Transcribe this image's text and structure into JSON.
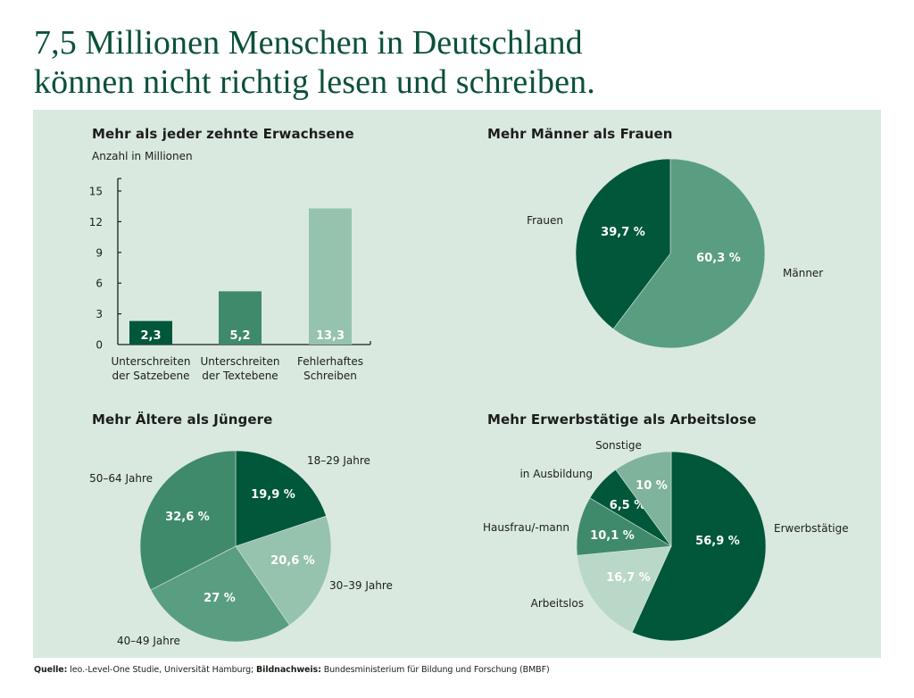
{
  "headline": {
    "line1": "7,5 Millionen Menschen in Deutschland",
    "line2": "können nicht richtig lesen und schreiben."
  },
  "colors": {
    "panel_bg": "#d9e9e0",
    "headline": "#0b5139",
    "dark_green": "#00573a",
    "mid_green": "#3f8a6a",
    "medium_green": "#5a9e82",
    "light_green": "#96c3ad",
    "pale_green": "#b9d8c7"
  },
  "chart_data": [
    {
      "type": "bar",
      "title": "Mehr als jeder zehnte Erwachsene",
      "ylabel": "Anzahl in Millionen",
      "xlabel": "",
      "ylim": [
        0,
        15
      ],
      "yticks": [
        "0",
        "3",
        "6",
        "9",
        "12",
        "15"
      ],
      "categories": [
        [
          "Unterschreiten",
          "der Satzebene"
        ],
        [
          "Unterschreiten",
          "der Textebene"
        ],
        [
          "Fehlerhaftes",
          "Schreiben"
        ]
      ],
      "values": [
        2.3,
        5.2,
        13.3
      ],
      "value_labels": [
        "2,3",
        "5,2",
        "13,3"
      ],
      "bar_colors": [
        "#00573a",
        "#3f8a6a",
        "#96c3ad"
      ],
      "grid": false
    },
    {
      "type": "pie",
      "title": "Mehr Männer als Frauen",
      "slices": [
        {
          "label": "Männer",
          "value": 60.3,
          "display": "60,3 %",
          "color": "#5a9e82"
        },
        {
          "label": "Frauen",
          "value": 39.7,
          "display": "39,7 %",
          "color": "#00573a"
        }
      ]
    },
    {
      "type": "pie",
      "title": "Mehr Ältere als Jüngere",
      "slices": [
        {
          "label": "18–29 Jahre",
          "value": 19.9,
          "display": "19,9 %",
          "color": "#00573a"
        },
        {
          "label": "30–39 Jahre",
          "value": 20.6,
          "display": "20,6 %",
          "color": "#96c3ad"
        },
        {
          "label": "40–49 Jahre",
          "value": 27,
          "display": "27 %",
          "color": "#5a9e82"
        },
        {
          "label": "50–64 Jahre",
          "value": 32.6,
          "display": "32,6 %",
          "color": "#3f8a6a"
        }
      ]
    },
    {
      "type": "pie",
      "title": "Mehr Erwerbstätige als Arbeitslose",
      "slices": [
        {
          "label": "Erwerbstätige",
          "value": 56.9,
          "display": "56,9 %",
          "color": "#00573a"
        },
        {
          "label": "Arbeitslos",
          "value": 16.7,
          "display": "16,7 %",
          "color": "#b9d8c7"
        },
        {
          "label": "Hausfrau/-mann",
          "value": 10.1,
          "display": "10,1 %",
          "color": "#3f8a6a"
        },
        {
          "label": "in Ausbildung",
          "value": 6.5,
          "display": "6,5 %",
          "color": "#00573a"
        },
        {
          "label": "Sonstige",
          "value": 10,
          "display": "10 %",
          "color": "#7fb39b"
        }
      ]
    }
  ],
  "footer": {
    "source_label": "Quelle:",
    "source_text": " leo.-Level-One Studie, Universität Hamburg; ",
    "credit_label": "Bildnachweis:",
    "credit_text": " Bundesministerium für Bildung und Forschung (BMBF)"
  }
}
